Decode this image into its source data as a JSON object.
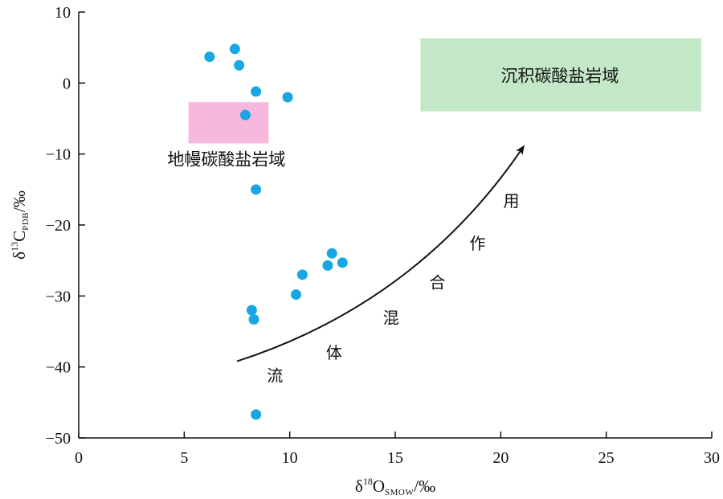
{
  "chart_data": {
    "type": "scatter",
    "xlabel": {
      "prefix": "δ",
      "sup": "18",
      "main": "O",
      "sub": "SMOW",
      "unit": "/‰"
    },
    "ylabel": {
      "prefix": "δ",
      "sup": "13",
      "main": "C",
      "sub": "PDB",
      "unit": "/‰"
    },
    "xlim": [
      0,
      30
    ],
    "ylim": [
      -50,
      10
    ],
    "xticks": [
      0,
      5,
      10,
      15,
      20,
      25,
      30
    ],
    "yticks": [
      10,
      0,
      -10,
      -20,
      -30,
      -40,
      -50
    ],
    "xtick_labels": [
      "0",
      "5",
      "10",
      "15",
      "20",
      "25",
      "30"
    ],
    "ytick_labels": [
      "10",
      "0",
      "−10",
      "−20",
      "−30",
      "−40",
      "−50"
    ],
    "grid": false,
    "point_color": "#17a8e3",
    "points": [
      {
        "x": 6.2,
        "y": 3.7
      },
      {
        "x": 7.4,
        "y": 4.8
      },
      {
        "x": 7.6,
        "y": 2.5
      },
      {
        "x": 8.4,
        "y": -1.2
      },
      {
        "x": 9.9,
        "y": -2.0
      },
      {
        "x": 7.9,
        "y": -4.5
      },
      {
        "x": 8.4,
        "y": -15.0
      },
      {
        "x": 12.0,
        "y": -24.0
      },
      {
        "x": 12.5,
        "y": -25.3
      },
      {
        "x": 11.8,
        "y": -25.7
      },
      {
        "x": 10.6,
        "y": -27.0
      },
      {
        "x": 10.3,
        "y": -29.8
      },
      {
        "x": 8.2,
        "y": -32.0
      },
      {
        "x": 8.3,
        "y": -33.3
      },
      {
        "x": 8.4,
        "y": -46.7
      }
    ],
    "regions": [
      {
        "label": "地幔碳酸盐岩域",
        "color": "#f7b8de",
        "x": [
          5.2,
          9.0
        ],
        "y": [
          -8.5,
          -2.7
        ],
        "label_anchor": {
          "x": 7.0,
          "y": -10.8
        }
      },
      {
        "label": "沉积碳酸盐岩域",
        "color": "#c3e8c7",
        "x": [
          16.2,
          29.5
        ],
        "y": [
          -4.0,
          6.3
        ],
        "label_anchor": {
          "x": 22.8,
          "y": 1.0
        }
      }
    ],
    "trend_arrow": {
      "path": [
        {
          "x": 7.5,
          "y": -39.2
        },
        {
          "x": 16.0,
          "y": -31.0
        },
        {
          "x": 21.0,
          "y": -9.3
        }
      ],
      "chars": [
        "流",
        "体",
        "混",
        "合",
        "作",
        "用"
      ],
      "char_positions": [
        {
          "x": 9.3,
          "y": -41.2
        },
        {
          "x": 12.1,
          "y": -38.0
        },
        {
          "x": 14.8,
          "y": -33.1
        },
        {
          "x": 17.0,
          "y": -28.1
        },
        {
          "x": 18.9,
          "y": -22.6
        },
        {
          "x": 20.5,
          "y": -16.6
        }
      ]
    }
  }
}
